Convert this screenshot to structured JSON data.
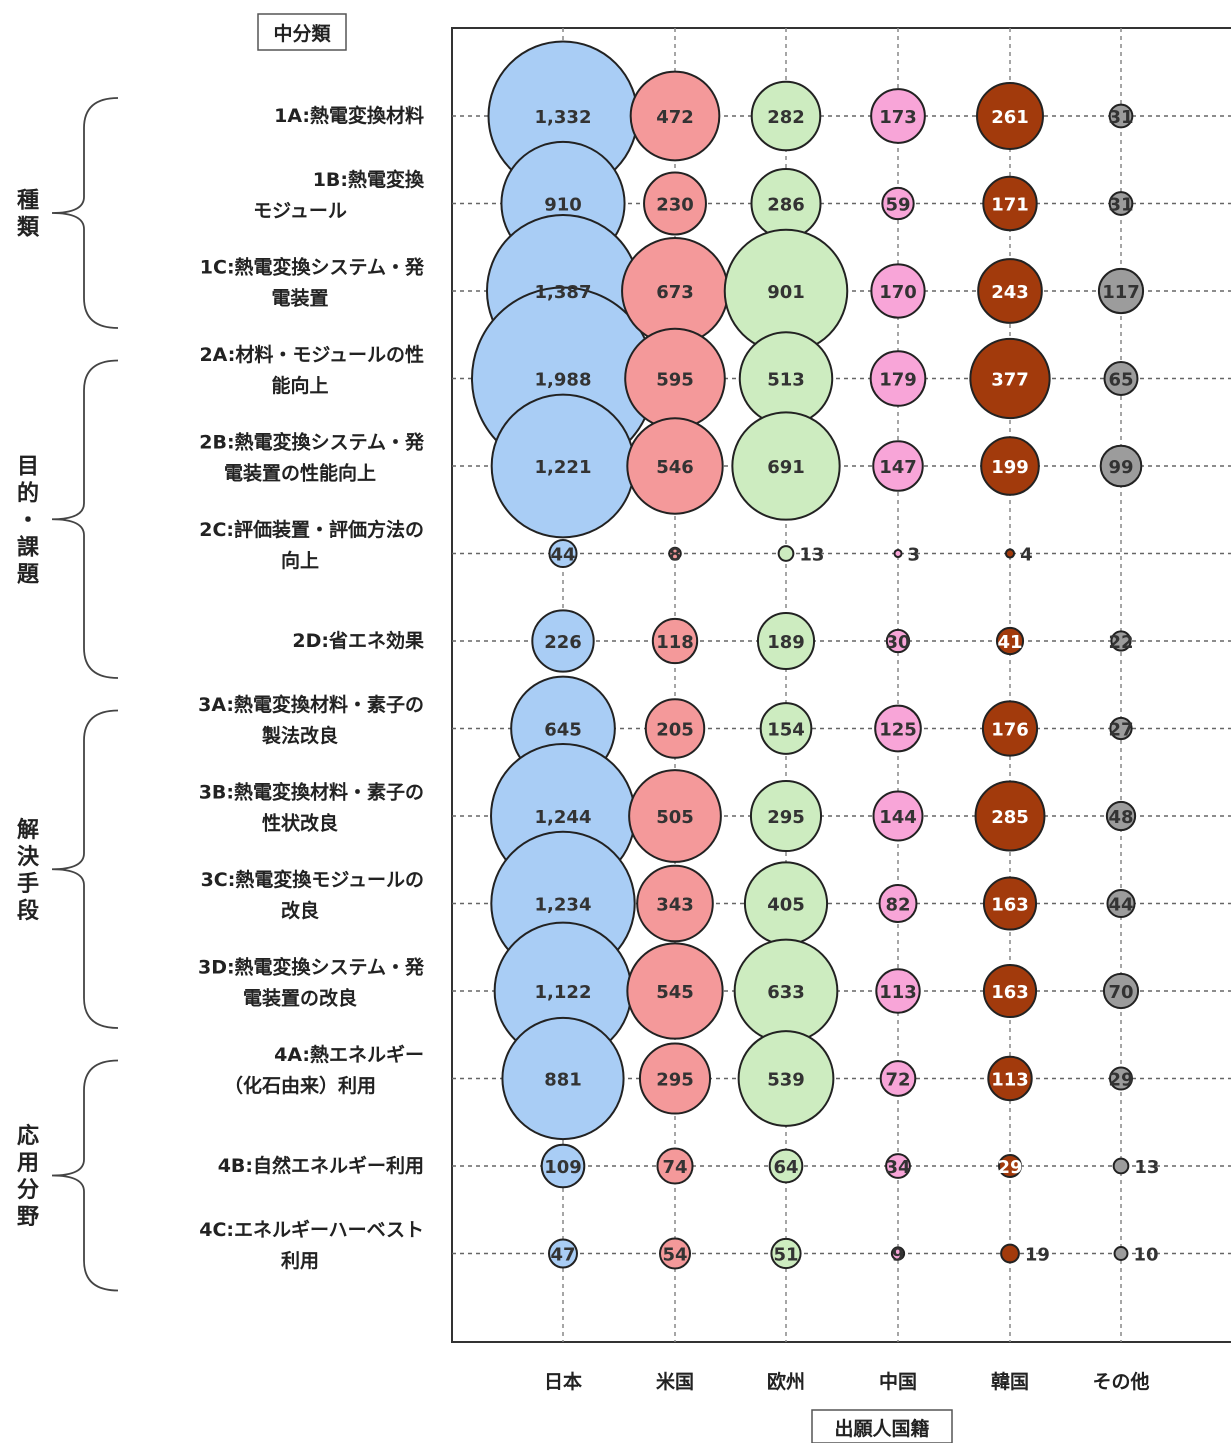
{
  "chart_data": {
    "type": "bubble",
    "title": "中分類",
    "xlabel": "出願人国籍",
    "ylabel": "",
    "countries": [
      "日本",
      "米国",
      "欧州",
      "中国",
      "韓国",
      "その他"
    ],
    "country_colors": [
      "#a9cdf5",
      "#f4999a",
      "#cdecc0",
      "#f8a5d8",
      "#a23a0c",
      "#9c9c9c"
    ],
    "groups": [
      {
        "label": "種類",
        "rows": [
          0,
          2
        ]
      },
      {
        "label": "目的・課題",
        "rows": [
          3,
          6
        ]
      },
      {
        "label": "解決手段",
        "rows": [
          7,
          10
        ]
      },
      {
        "label": "応用分野",
        "rows": [
          11,
          13
        ]
      }
    ],
    "categories": [
      {
        "label": [
          "1A:熱電変換材料"
        ],
        "values": [
          1332,
          472,
          282,
          173,
          261,
          31
        ]
      },
      {
        "label": [
          "1B:熱電変換",
          "モジュール"
        ],
        "values": [
          910,
          230,
          286,
          59,
          171,
          31
        ]
      },
      {
        "label": [
          "1C:熱電変換システム・発",
          "電装置"
        ],
        "values": [
          1387,
          673,
          901,
          170,
          243,
          117
        ]
      },
      {
        "label": [
          "2A:材料・モジュールの性",
          "能向上"
        ],
        "values": [
          1988,
          595,
          513,
          179,
          377,
          65
        ]
      },
      {
        "label": [
          "2B:熱電変換システム・発",
          "電装置の性能向上"
        ],
        "values": [
          1221,
          546,
          691,
          147,
          199,
          99
        ]
      },
      {
        "label": [
          "2C:評価装置・評価方法の",
          "向上"
        ],
        "values": [
          44,
          8,
          13,
          3,
          4,
          0
        ]
      },
      {
        "label": [
          "2D:省エネ効果"
        ],
        "values": [
          226,
          118,
          189,
          30,
          41,
          22
        ]
      },
      {
        "label": [
          "3A:熱電変換材料・素子の",
          "製法改良"
        ],
        "values": [
          645,
          205,
          154,
          125,
          176,
          27
        ]
      },
      {
        "label": [
          "3B:熱電変換材料・素子の",
          "性状改良"
        ],
        "values": [
          1244,
          505,
          295,
          144,
          285,
          48
        ]
      },
      {
        "label": [
          "3C:熱電変換モジュールの",
          "改良"
        ],
        "values": [
          1234,
          343,
          405,
          82,
          163,
          44
        ]
      },
      {
        "label": [
          "3D:熱電変換システム・発",
          "電装置の改良"
        ],
        "values": [
          1122,
          545,
          633,
          113,
          163,
          70
        ]
      },
      {
        "label": [
          "4A:熱エネルギー",
          "（化石由来）利用"
        ],
        "values": [
          881,
          295,
          539,
          72,
          113,
          29
        ]
      },
      {
        "label": [
          "4B:自然エネルギー利用"
        ],
        "values": [
          109,
          74,
          64,
          34,
          29,
          13
        ]
      },
      {
        "label": [
          "4C:エネルギーハーベスト",
          "利用"
        ],
        "values": [
          47,
          54,
          51,
          9,
          19,
          10
        ]
      }
    ]
  }
}
